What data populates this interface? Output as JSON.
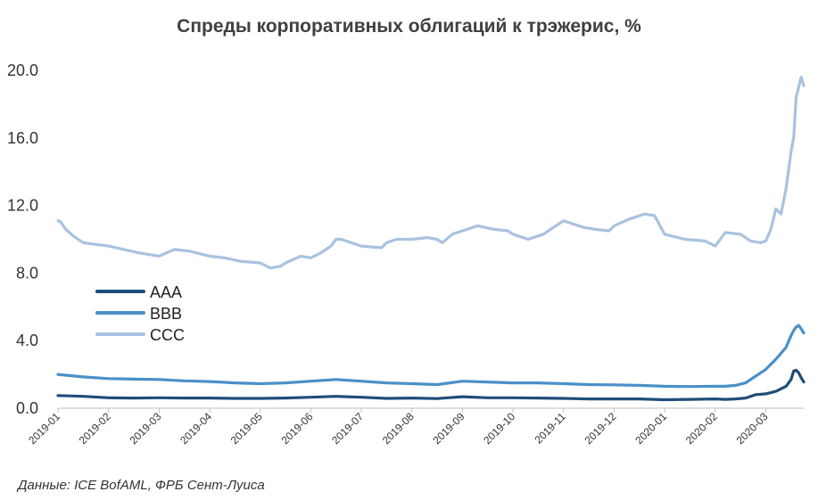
{
  "chart_data": {
    "type": "line",
    "title": "Спреды корпоративных облигаций к трэжерис, %",
    "source": "Данные: ICE BofAML, ФРБ Сент-Луиса",
    "ylim": [
      0,
      20
    ],
    "yticks": [
      "0.0",
      "4.0",
      "8.0",
      "12.0",
      "16.0",
      "20.0"
    ],
    "ytick_values": [
      0,
      4,
      8,
      12,
      16,
      20
    ],
    "xlim": [
      0,
      14.75
    ],
    "xticks": [
      "2019-01",
      "2019-02",
      "2019-03",
      "2019-04",
      "2019-05",
      "2019-06",
      "2019-07",
      "2019-08",
      "2019-09",
      "2019-10",
      "2019-11",
      "2019-12",
      "2020-01",
      "2020-02",
      "2020-03"
    ],
    "legend_position": "middle-left",
    "grid": false,
    "series": [
      {
        "name": "AAA",
        "color": "#1f4e79",
        "x": [
          0,
          0.5,
          1,
          1.5,
          2,
          2.5,
          3,
          3.5,
          4,
          4.5,
          5,
          5.5,
          6,
          6.5,
          7,
          7.5,
          8,
          8.5,
          9,
          9.5,
          10,
          10.5,
          11,
          11.5,
          12,
          12.5,
          13,
          13.2,
          13.4,
          13.6,
          13.8,
          14.0,
          14.2,
          14.4,
          14.5,
          14.55,
          14.6,
          14.65,
          14.7,
          14.75
        ],
        "values": [
          0.75,
          0.7,
          0.62,
          0.6,
          0.62,
          0.6,
          0.6,
          0.58,
          0.58,
          0.6,
          0.65,
          0.7,
          0.65,
          0.58,
          0.6,
          0.57,
          0.68,
          0.62,
          0.62,
          0.6,
          0.58,
          0.55,
          0.55,
          0.55,
          0.5,
          0.52,
          0.55,
          0.52,
          0.55,
          0.6,
          0.8,
          0.85,
          1.0,
          1.3,
          1.7,
          2.2,
          2.25,
          2.1,
          1.8,
          1.55
        ]
      },
      {
        "name": "BBB",
        "color": "#4a90c8",
        "x": [
          0,
          0.5,
          1,
          1.5,
          2,
          2.5,
          3,
          3.5,
          4,
          4.5,
          5,
          5.5,
          6,
          6.5,
          7,
          7.5,
          8,
          8.5,
          9,
          9.5,
          10,
          10.5,
          11,
          11.5,
          12,
          12.5,
          13,
          13.2,
          13.4,
          13.6,
          13.8,
          14.0,
          14.2,
          14.4,
          14.5,
          14.55,
          14.6,
          14.65,
          14.7,
          14.75
        ],
        "values": [
          2.0,
          1.85,
          1.75,
          1.72,
          1.7,
          1.62,
          1.58,
          1.5,
          1.45,
          1.5,
          1.6,
          1.7,
          1.6,
          1.5,
          1.45,
          1.4,
          1.6,
          1.55,
          1.5,
          1.5,
          1.45,
          1.4,
          1.38,
          1.35,
          1.3,
          1.28,
          1.3,
          1.3,
          1.35,
          1.5,
          1.9,
          2.3,
          2.9,
          3.6,
          4.3,
          4.6,
          4.8,
          4.9,
          4.7,
          4.45
        ]
      },
      {
        "name": "CCC",
        "color": "#a9c2df",
        "x": [
          0,
          0.05,
          0.15,
          0.3,
          0.5,
          0.75,
          1,
          1.3,
          1.6,
          2,
          2.3,
          2.6,
          3,
          3.3,
          3.6,
          4,
          4.2,
          4.4,
          4.5,
          4.8,
          5.0,
          5.2,
          5.4,
          5.5,
          5.6,
          6,
          6.4,
          6.5,
          6.7,
          7,
          7.3,
          7.5,
          7.6,
          7.8,
          8,
          8.3,
          8.6,
          8.9,
          9,
          9.3,
          9.6,
          9.7,
          10,
          10.4,
          10.6,
          10.9,
          11,
          11.3,
          11.6,
          11.8,
          12,
          12.4,
          12.8,
          13,
          13.2,
          13.5,
          13.7,
          13.9,
          14.0,
          14.1,
          14.2,
          14.3,
          14.4,
          14.5,
          14.55,
          14.6,
          14.65,
          14.7,
          14.75
        ],
        "values": [
          11.1,
          11.05,
          10.6,
          10.2,
          9.8,
          9.7,
          9.6,
          9.4,
          9.2,
          9.0,
          9.4,
          9.3,
          9.0,
          8.9,
          8.7,
          8.6,
          8.3,
          8.4,
          8.6,
          9.0,
          8.9,
          9.2,
          9.6,
          10.0,
          10.0,
          9.6,
          9.5,
          9.8,
          10.0,
          10.0,
          10.1,
          10.0,
          9.8,
          10.3,
          10.5,
          10.8,
          10.6,
          10.5,
          10.3,
          10.0,
          10.3,
          10.5,
          11.1,
          10.7,
          10.6,
          10.5,
          10.8,
          11.2,
          11.5,
          11.4,
          10.3,
          10.0,
          9.9,
          9.6,
          10.4,
          10.3,
          9.9,
          9.8,
          9.9,
          10.6,
          11.8,
          11.5,
          13.0,
          15.2,
          16.0,
          18.4,
          19.0,
          19.6,
          19.1
        ]
      }
    ]
  }
}
